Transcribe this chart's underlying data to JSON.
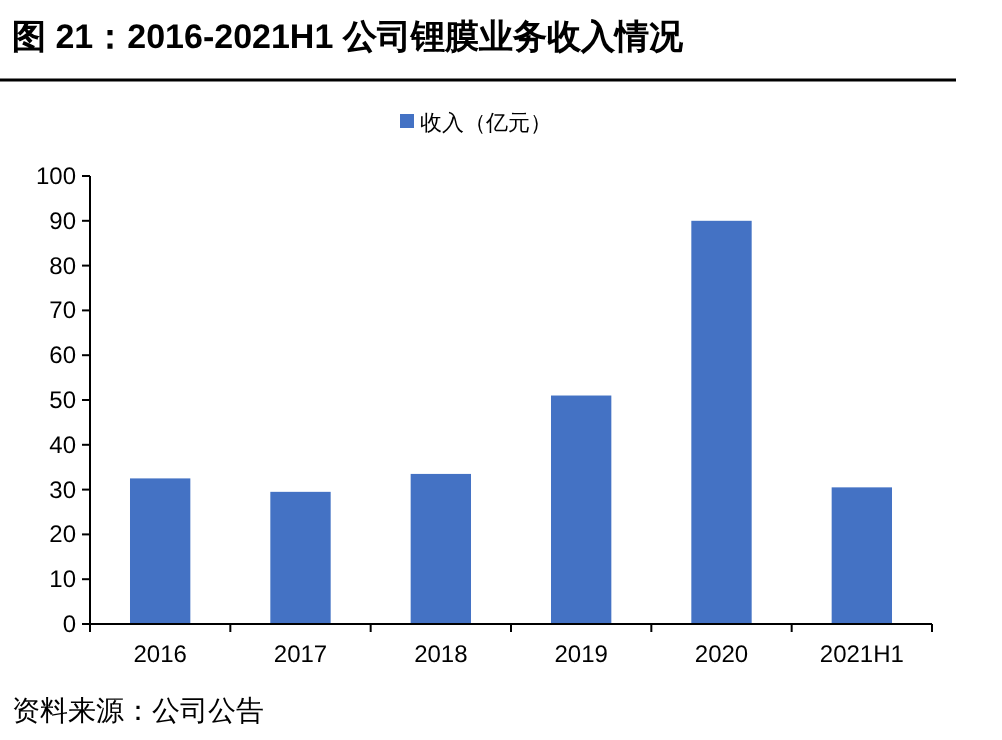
{
  "chart_data": {
    "type": "bar",
    "title": "图 21：2016-2021H1 公司锂膜业务收入情况",
    "categories": [
      "2016",
      "2017",
      "2018",
      "2019",
      "2020",
      "2021H1"
    ],
    "series": [
      {
        "name": "收入（亿元）",
        "color": "#4472c4",
        "values": [
          32.5,
          29.5,
          33.5,
          51,
          90,
          30.5
        ]
      }
    ],
    "ylim": [
      0,
      100
    ],
    "yticks": [
      0,
      10,
      20,
      30,
      40,
      50,
      60,
      70,
      80,
      90,
      100
    ],
    "grid": false,
    "legend": "top",
    "annotations": [
      "资料来源：公司公告"
    ]
  }
}
